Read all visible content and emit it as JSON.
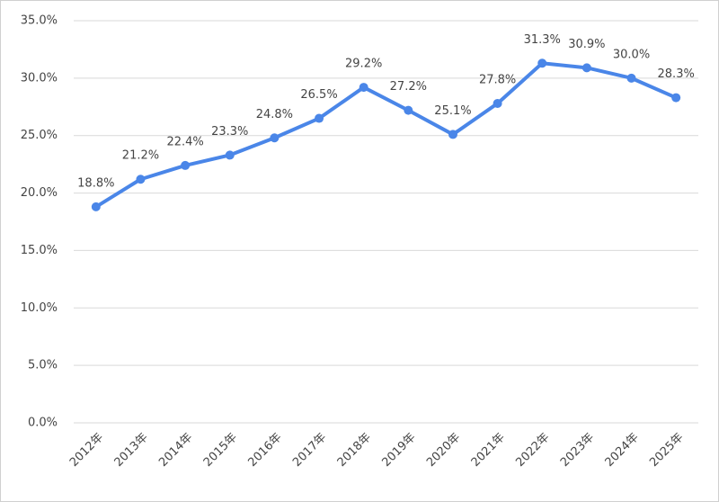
{
  "chart_data": {
    "type": "line",
    "categories": [
      "2012年",
      "2013年",
      "2014年",
      "2015年",
      "2016年",
      "2017年",
      "2018年",
      "2019年",
      "2020年",
      "2021年",
      "2022年",
      "2023年",
      "2024年",
      "2025年"
    ],
    "values": [
      18.8,
      21.2,
      22.4,
      23.3,
      24.8,
      26.5,
      29.2,
      27.2,
      25.1,
      27.8,
      31.3,
      30.9,
      30.0,
      28.3
    ],
    "value_labels": [
      "18.8%",
      "21.2%",
      "22.4%",
      "23.3%",
      "24.8%",
      "26.5%",
      "29.2%",
      "27.2%",
      "25.1%",
      "27.8%",
      "31.3%",
      "30.9%",
      "30.0%",
      "28.3%"
    ],
    "color": "#4a86e8",
    "ylim": [
      0,
      35
    ],
    "yticks": [
      {
        "value": 0,
        "label": "0.0%"
      },
      {
        "value": 5,
        "label": "5.0%"
      },
      {
        "value": 10,
        "label": "10.0%"
      },
      {
        "value": 15,
        "label": "15.0%"
      },
      {
        "value": 20,
        "label": "20.0%"
      },
      {
        "value": 25,
        "label": "25.0%"
      },
      {
        "value": 30,
        "label": "30.0%"
      },
      {
        "value": 35,
        "label": "35.0%"
      }
    ],
    "grid": true
  }
}
